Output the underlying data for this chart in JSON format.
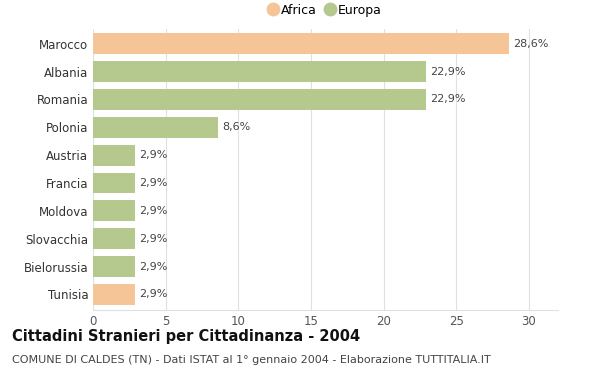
{
  "categories": [
    "Marocco",
    "Albania",
    "Romania",
    "Polonia",
    "Austria",
    "Francia",
    "Moldova",
    "Slovacchia",
    "Bielorussia",
    "Tunisia"
  ],
  "values": [
    28.6,
    22.9,
    22.9,
    8.6,
    2.9,
    2.9,
    2.9,
    2.9,
    2.9,
    2.9
  ],
  "labels": [
    "28,6%",
    "22,9%",
    "22,9%",
    "8,6%",
    "2,9%",
    "2,9%",
    "2,9%",
    "2,9%",
    "2,9%",
    "2,9%"
  ],
  "colors": [
    "#f5c597",
    "#b5c98e",
    "#b5c98e",
    "#b5c98e",
    "#b5c98e",
    "#b5c98e",
    "#b5c98e",
    "#b5c98e",
    "#b5c98e",
    "#f5c597"
  ],
  "continent": [
    "Africa",
    "Europa",
    "Europa",
    "Europa",
    "Europa",
    "Europa",
    "Europa",
    "Europa",
    "Europa",
    "Africa"
  ],
  "legend_africa_color": "#f5c597",
  "legend_europa_color": "#b5c98e",
  "xlim": [
    0,
    32
  ],
  "xticks": [
    0,
    5,
    10,
    15,
    20,
    25,
    30
  ],
  "title": "Cittadini Stranieri per Cittadinanza - 2004",
  "subtitle": "COMUNE DI CALDES (TN) - Dati ISTAT al 1° gennaio 2004 - Elaborazione TUTTITALIA.IT",
  "background_color": "#ffffff",
  "grid_color": "#e0e0e0",
  "label_fontsize": 8.0,
  "ytick_fontsize": 8.5,
  "xtick_fontsize": 8.5,
  "title_fontsize": 10.5,
  "subtitle_fontsize": 8.0,
  "bar_height": 0.75
}
